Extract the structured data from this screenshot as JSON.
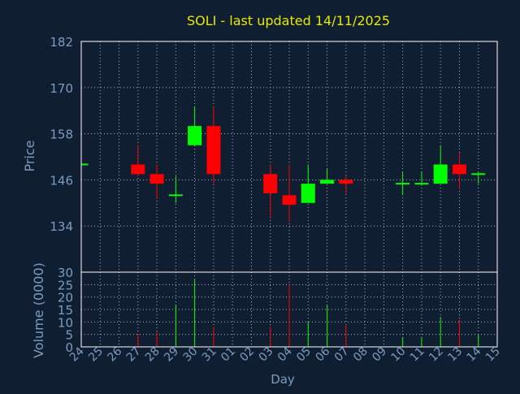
{
  "theme": {
    "background": "#0f1e30",
    "title_color": "#e8e800",
    "axis_text_color": "#7d9cc0",
    "frame_color": "#ffffff",
    "grid_color": "#a8b8cc",
    "up_color": "#00ff00",
    "down_color": "#ff0000"
  },
  "chart_data": {
    "type": "candlestick",
    "title": "SOLI - last updated 14/11/2025",
    "xlabel": "Day",
    "price_axis": {
      "label": "Price",
      "ylim": [
        122,
        182
      ],
      "ticks": [
        134,
        146,
        158,
        170,
        182
      ]
    },
    "volume_axis": {
      "label": "Volume (0000)",
      "ylim": [
        0,
        30
      ],
      "ticks": [
        0,
        5,
        10,
        15,
        20,
        25,
        30
      ]
    },
    "grid": true,
    "x_ticks": [
      "24",
      "25",
      "26",
      "27",
      "28",
      "29",
      "30",
      "31",
      "01",
      "02",
      "03",
      "04",
      "05",
      "06",
      "07",
      "08",
      "09",
      "10",
      "11",
      "12",
      "13",
      "14",
      "15"
    ],
    "candles": [
      {
        "day": "24",
        "open": 150,
        "close": 150,
        "high": 150,
        "low": 150,
        "volume": 0
      },
      {
        "day": "27",
        "open": 150,
        "close": 147.5,
        "high": 155,
        "low": 147,
        "volume": 5
      },
      {
        "day": "28",
        "open": 147.5,
        "close": 145,
        "high": 150,
        "low": 141,
        "volume": 6
      },
      {
        "day": "29",
        "open": 142,
        "close": 142,
        "high": 147,
        "low": 140,
        "volume": 17
      },
      {
        "day": "30",
        "open": 155,
        "close": 160,
        "high": 165,
        "low": 155,
        "volume": 27
      },
      {
        "day": "31",
        "open": 160,
        "close": 147.5,
        "high": 165,
        "low": 145,
        "volume": 8
      },
      {
        "day": "03",
        "open": 147.5,
        "close": 142.5,
        "high": 150,
        "low": 136,
        "volume": 8
      },
      {
        "day": "04",
        "open": 142,
        "close": 139.5,
        "high": 150,
        "low": 135,
        "volume": 25
      },
      {
        "day": "05",
        "open": 140,
        "close": 145,
        "high": 150,
        "low": 140,
        "volume": 10
      },
      {
        "day": "06",
        "open": 145,
        "close": 146,
        "high": 149,
        "low": 145,
        "volume": 17
      },
      {
        "day": "07",
        "open": 146,
        "close": 145,
        "high": 147,
        "low": 142.5,
        "volume": 9
      },
      {
        "day": "10",
        "open": 145,
        "close": 145,
        "high": 148,
        "low": 142,
        "volume": 4
      },
      {
        "day": "11",
        "open": 145,
        "close": 145,
        "high": 148,
        "low": 144.5,
        "volume": 4
      },
      {
        "day": "12",
        "open": 145,
        "close": 150,
        "high": 155,
        "low": 145,
        "volume": 12
      },
      {
        "day": "13",
        "open": 150,
        "close": 147.5,
        "high": 153,
        "low": 143.5,
        "volume": 11
      },
      {
        "day": "14",
        "open": 147.5,
        "close": 147.5,
        "high": 148,
        "low": 145,
        "volume": 5
      }
    ]
  }
}
